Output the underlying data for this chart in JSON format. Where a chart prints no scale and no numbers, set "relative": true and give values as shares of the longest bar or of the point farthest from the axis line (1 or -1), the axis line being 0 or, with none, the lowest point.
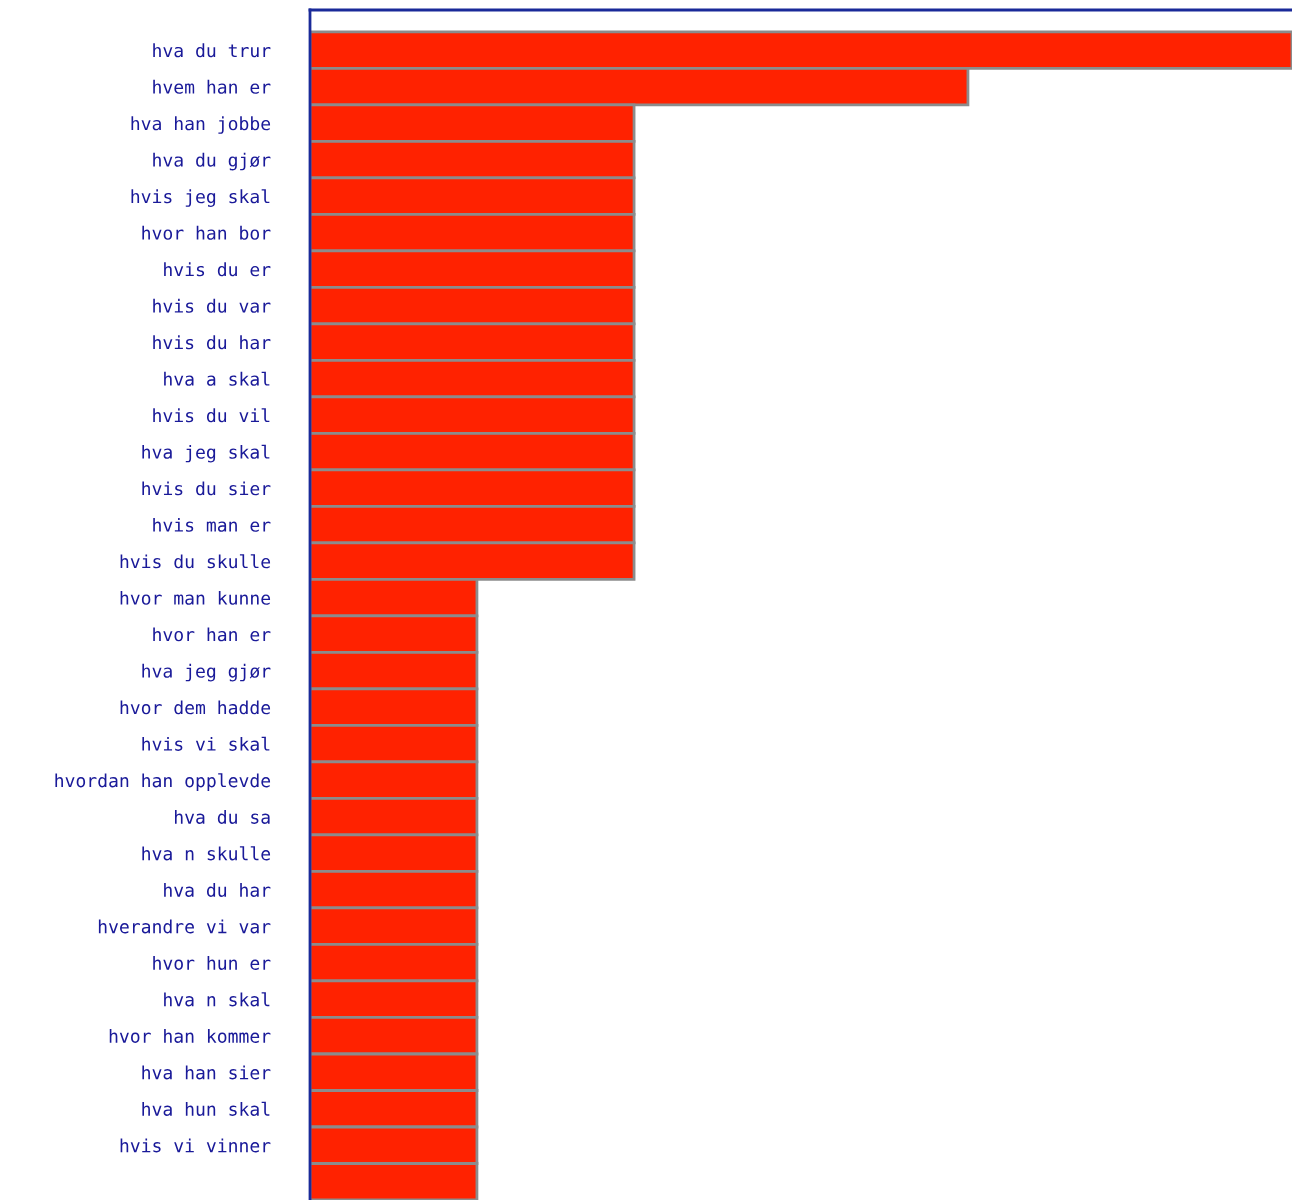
{
  "chart_data": {
    "type": "bar",
    "orientation": "horizontal",
    "relative": true,
    "color": "#ff2200",
    "grid": false,
    "tick_labels": "y",
    "categories": [
      "hva du trur",
      "hvem han er",
      "hva han jobbe",
      "hva du gjør",
      "hvis jeg skal",
      "hvor han bor",
      "hvis du er",
      "hvis du var",
      "hvis du har",
      "hva a skal",
      "hvis du vil",
      "hva jeg skal",
      "hvis du sier",
      "hvis man er",
      "hvis du skulle",
      "hvor man kunne",
      "hvor han er",
      "hva jeg gjør",
      "hvor dem hadde",
      "hvis vi skal",
      "hvordan han opplevde",
      "hva du sa",
      "hva n skulle",
      "hva du har",
      "hverandre vi var",
      "hvor hun er",
      "hva n skal",
      "hvor han kommer",
      "hva han sier",
      "hva hun skal",
      "hvis vi vinner",
      null
    ],
    "values": [
      1,
      0.67,
      0.33,
      0.33,
      0.33,
      0.33,
      0.33,
      0.33,
      0.33,
      0.33,
      0.33,
      0.33,
      0.33,
      0.33,
      0.33,
      0.17,
      0.17,
      0.17,
      0.17,
      0.17,
      0.17,
      0.17,
      0.17,
      0.17,
      0.17,
      0.17,
      0.17,
      0.17,
      0.17,
      0.17,
      0.17,
      0.17
    ]
  }
}
